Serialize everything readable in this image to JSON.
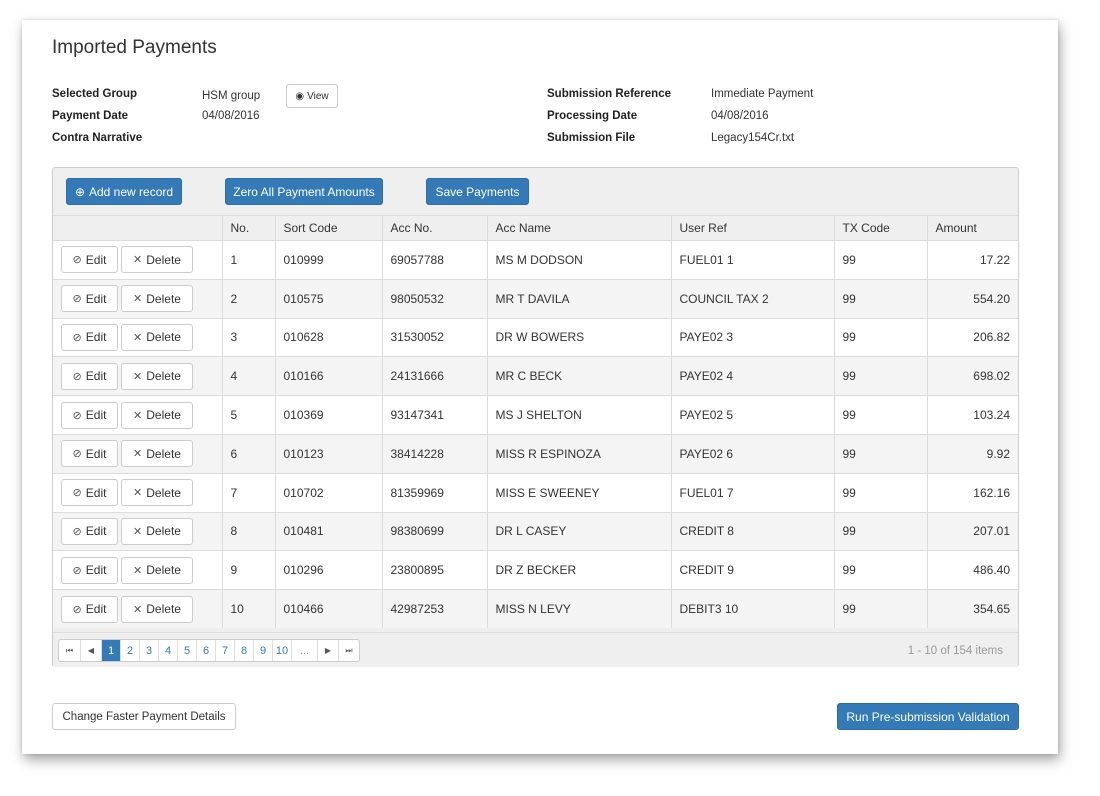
{
  "page": {
    "title": "Imported Payments"
  },
  "meta": {
    "selected_group_label": "Selected Group",
    "selected_group_value": "HSM group",
    "view_label": "View",
    "payment_date_label": "Payment Date",
    "payment_date_value": "04/08/2016",
    "contra_narrative_label": "Contra Narrative",
    "submission_reference_label": "Submission Reference",
    "submission_reference_value": "Immediate Payment",
    "processing_date_label": "Processing Date",
    "processing_date_value": "04/08/2016",
    "submission_file_label": "Submission File",
    "submission_file_value": "Legacy154Cr.txt"
  },
  "toolbar": {
    "add_label": "Add new record",
    "zero_label": "Zero All Payment Amounts",
    "save_label": "Save Payments"
  },
  "table": {
    "headers": [
      "",
      "No.",
      "Sort Code",
      "Acc No.",
      "Acc Name",
      "User Ref",
      "TX Code",
      "Amount"
    ],
    "edit_label": "Edit",
    "delete_label": "Delete",
    "rows": [
      {
        "no": "1",
        "sort": "010999",
        "acc": "69057788",
        "name": "MS M DODSON",
        "ref": "FUEL01 1",
        "tx": "99",
        "amount": "17.22"
      },
      {
        "no": "2",
        "sort": "010575",
        "acc": "98050532",
        "name": "MR T DAVILA",
        "ref": "COUNCIL TAX 2",
        "tx": "99",
        "amount": "554.20"
      },
      {
        "no": "3",
        "sort": "010628",
        "acc": "31530052",
        "name": "DR W BOWERS",
        "ref": "PAYE02 3",
        "tx": "99",
        "amount": "206.82"
      },
      {
        "no": "4",
        "sort": "010166",
        "acc": "24131666",
        "name": "MR C BECK",
        "ref": "PAYE02 4",
        "tx": "99",
        "amount": "698.02"
      },
      {
        "no": "5",
        "sort": "010369",
        "acc": "93147341",
        "name": "MS J SHELTON",
        "ref": "PAYE02 5",
        "tx": "99",
        "amount": "103.24"
      },
      {
        "no": "6",
        "sort": "010123",
        "acc": "38414228",
        "name": "MISS R ESPINOZA",
        "ref": "PAYE02 6",
        "tx": "99",
        "amount": "9.92"
      },
      {
        "no": "7",
        "sort": "010702",
        "acc": "81359969",
        "name": "MISS E SWEENEY",
        "ref": "FUEL01 7",
        "tx": "99",
        "amount": "162.16"
      },
      {
        "no": "8",
        "sort": "010481",
        "acc": "98380699",
        "name": "DR L CASEY",
        "ref": "CREDIT 8",
        "tx": "99",
        "amount": "207.01"
      },
      {
        "no": "9",
        "sort": "010296",
        "acc": "23800895",
        "name": "DR Z BECKER",
        "ref": "CREDIT 9",
        "tx": "99",
        "amount": "486.40"
      },
      {
        "no": "10",
        "sort": "010466",
        "acc": "42987253",
        "name": "MISS N LEVY",
        "ref": "DEBIT3 10",
        "tx": "99",
        "amount": "354.65"
      }
    ]
  },
  "pager": {
    "pages": [
      "1",
      "2",
      "3",
      "4",
      "5",
      "6",
      "7",
      "8",
      "9",
      "10"
    ],
    "ellipsis": "...",
    "active_page": "1",
    "info": "1 - 10 of 154 items"
  },
  "footer": {
    "change_label": "Change Faster Payment Details",
    "validate_label": "Run Pre-submission Validation"
  },
  "colors": {
    "primary": "#337ab7",
    "header_bg": "#efefef"
  }
}
